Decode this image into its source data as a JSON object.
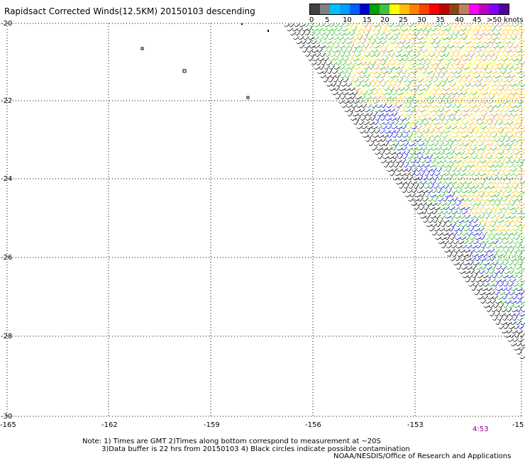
{
  "title": "Rapidsact Corrected Winds(12.5KM) 20150103 descending",
  "colorbar": {
    "colors": [
      "#404040",
      "#808080",
      "#00c0ff",
      "#00a0ff",
      "#0060ff",
      "#0000d0",
      "#00a000",
      "#40c040",
      "#ffff00",
      "#ffc000",
      "#ff8000",
      "#ff4000",
      "#ff0000",
      "#c00000",
      "#8b4513",
      "#c08060",
      "#ff00ff",
      "#c000c0",
      "#8000ff",
      "#5000a0"
    ],
    "labels": [
      "0",
      "5",
      "10",
      "15",
      "20",
      "25",
      "30",
      "35",
      "40",
      "45",
      ">50 knots"
    ]
  },
  "map": {
    "lon_labels": [
      "-165",
      "-162",
      "-159",
      "-156",
      "-153",
      "-15"
    ],
    "lat_labels": [
      "-20",
      "-22",
      "-24",
      "-26",
      "-28",
      "-30"
    ]
  },
  "time_label": "4:53",
  "notes": [
    "Note: 1) Times are GMT 2)Times along bottom correspond to measurement at ~20S",
    "3)Data buffer is 22 hrs from 20150103 4) Black circles indicate possible contamination"
  ],
  "credit": "NOAA/NESDIS/Office of Research and Applications"
}
